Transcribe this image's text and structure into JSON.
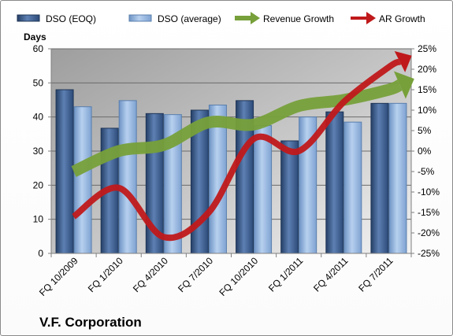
{
  "chart_data": {
    "type": "bar",
    "categories": [
      "FQ 10/2009",
      "FQ 1/2010",
      "FQ 4/2010",
      "FQ 7/2010",
      "FQ 10/2010",
      "FQ 1/2011",
      "FQ 4/2011",
      "FQ 7/2011"
    ],
    "series": [
      {
        "name": "DSO (EOQ)",
        "type": "bar",
        "axis": "left",
        "color": "#3a5f93",
        "values": [
          48,
          36.7,
          41,
          42,
          44.8,
          33,
          41.5,
          44
        ]
      },
      {
        "name": "DSO (average)",
        "type": "bar",
        "axis": "left",
        "color": "#8eb3e0",
        "values": [
          43,
          44.8,
          40.7,
          43.5,
          37.5,
          40,
          38.5,
          44
        ]
      },
      {
        "name": "Revenue Growth",
        "type": "line",
        "axis": "right",
        "color": "#77a03a",
        "values": [
          -5,
          0,
          1.5,
          7,
          6.5,
          11,
          12.5,
          15
        ]
      },
      {
        "name": "AR Growth",
        "type": "line",
        "axis": "right",
        "color": "#c0191b",
        "values": [
          -16,
          -9,
          -21,
          -15,
          3,
          0,
          12,
          20.5
        ]
      }
    ],
    "ylabel": "Days",
    "ylim": [
      0,
      60
    ],
    "yticks": [
      "0",
      "10",
      "20",
      "30",
      "40",
      "50",
      "60"
    ],
    "y2lim": [
      -25,
      25
    ],
    "y2ticks": [
      "-25%",
      "-20%",
      "-15%",
      "-10%",
      "-5%",
      "0%",
      "5%",
      "10%",
      "15%",
      "20%",
      "25%"
    ],
    "company": "V.F. Corporation",
    "grid": true,
    "legend_position": "top",
    "plot_background": "#c0c0c0"
  }
}
